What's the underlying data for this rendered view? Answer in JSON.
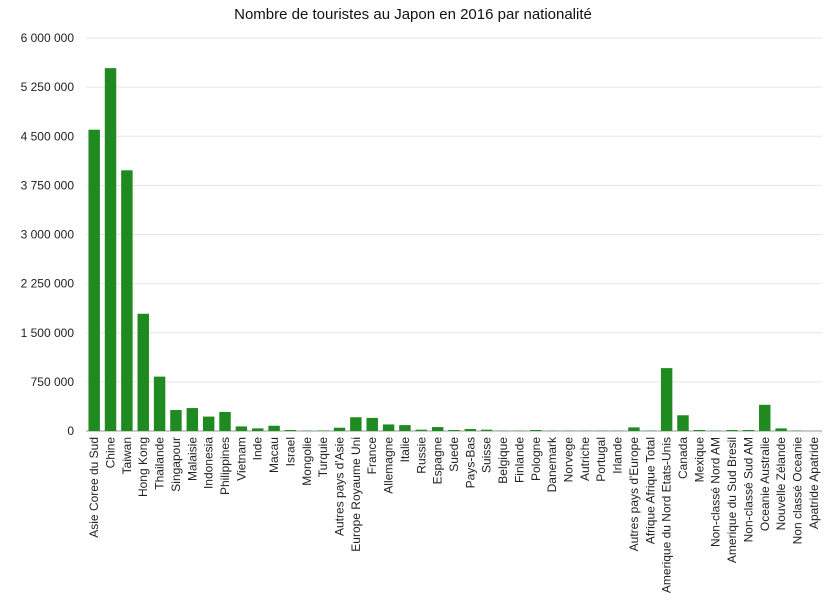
{
  "chart_data": {
    "type": "bar",
    "title": "Nombre de touristes au Japon en 2016 par nationalité",
    "xlabel": "",
    "ylabel": "",
    "ylim": [
      0,
      6000000
    ],
    "yticks": [
      0,
      750000,
      1500000,
      2250000,
      3000000,
      3750000,
      4500000,
      5250000,
      6000000
    ],
    "ytick_labels": [
      "0",
      "750 000",
      "1 500 000",
      "2 250 000",
      "3 000 000",
      "3 750 000",
      "4 500 000",
      "5 250 000",
      "6 000 000"
    ],
    "grid": true,
    "bar_color": "#1f8a1f",
    "categories": [
      "Asie Coree du Sud",
      "Chine",
      "Taiwan",
      "Hong Kong",
      "Thailande",
      "Singapour",
      "Malaisie",
      "Indonesia",
      "Philippines",
      "Vietnam",
      "Inde",
      "Macau",
      "Israel",
      "Mongolie",
      "Turquie",
      "Autres pays d'Asie",
      "Europe Royaume Uni",
      "France",
      "Allemagne",
      "Italie",
      "Russie",
      "Espagne",
      "Suede",
      "Pays-Bas",
      "Suisse",
      "Belgique",
      "Finlande",
      "Pologne",
      "Danemark",
      "Norvege",
      "Autriche",
      "Portugal",
      "Irlande",
      "Autres pays d'Europe",
      "Afrique Afrique Total",
      "Amerique du Nord Etats-Unis",
      "Canada",
      "Mexique",
      "Non-classé Nord AM",
      "Amerique du Sud Bresil",
      "Non-classé Sud AM",
      "Oceanie Australie",
      "Nouvelle Zélande",
      "Non classé Oceanie",
      "Apatride Apatride"
    ],
    "values": [
      4600000,
      5540000,
      3980000,
      1790000,
      830000,
      320000,
      350000,
      220000,
      290000,
      70000,
      40000,
      80000,
      15000,
      5000,
      8000,
      50000,
      210000,
      200000,
      100000,
      90000,
      20000,
      60000,
      15000,
      30000,
      20000,
      5000,
      5000,
      15000,
      5000,
      5000,
      5000,
      5000,
      5000,
      55000,
      5000,
      960000,
      240000,
      15000,
      5000,
      15000,
      15000,
      400000,
      40000,
      5000,
      0
    ]
  }
}
